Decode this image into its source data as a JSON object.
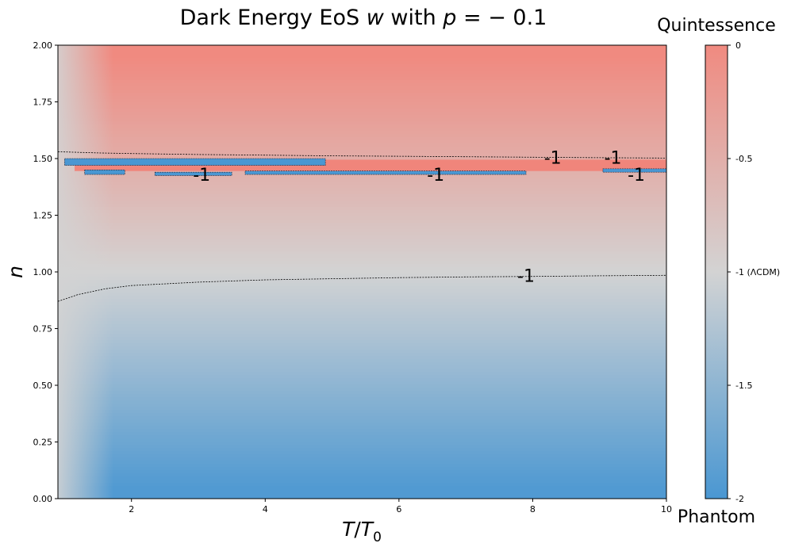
{
  "chart_data": {
    "type": "heatmap",
    "title": "Dark Energy EoS w with p = −0.1",
    "title_parts": {
      "prefix": "Dark Energy EoS ",
      "w": "w",
      "with": " with ",
      "p": "p",
      "eq": " = − 0.1"
    },
    "xlabel": "T/T₀",
    "xlabel_parts": {
      "T": "T",
      "slash": "/",
      "T2": "T",
      "sub": "0"
    },
    "ylabel": "n",
    "xlim": [
      0.9,
      10
    ],
    "ylim": [
      0,
      2
    ],
    "x_ticks": [
      "2",
      "4",
      "6",
      "8",
      "10"
    ],
    "y_ticks": [
      "0.00",
      "0.25",
      "0.50",
      "0.75",
      "1.00",
      "1.25",
      "1.50",
      "1.75",
      "2.00"
    ],
    "colorbar": {
      "top_label": "Quintessence",
      "bottom_label": "Phantom",
      "range": [
        -2,
        0
      ],
      "ticks": [
        {
          "value": 0,
          "label": "0"
        },
        {
          "value": -0.5,
          "label": "-0.5"
        },
        {
          "value": -1,
          "label": "-1 (ΛCDM)"
        },
        {
          "value": -1.5,
          "label": "-1.5"
        },
        {
          "value": -2,
          "label": "-2"
        }
      ],
      "colors": {
        "quintessence": "#f08a80",
        "lcdm": "#d3d3d3",
        "phantom": "#4a97d2"
      }
    },
    "contour_level": -1,
    "contour_labels": [
      {
        "x": 3.05,
        "y": 1.43,
        "label": "-1"
      },
      {
        "x": 6.55,
        "y": 1.43,
        "label": "-1"
      },
      {
        "x": 8.3,
        "y": 1.505,
        "label": "-1"
      },
      {
        "x": 9.2,
        "y": 1.505,
        "label": "-1"
      },
      {
        "x": 9.55,
        "y": 1.43,
        "label": "-1"
      },
      {
        "x": 7.9,
        "y": 0.985,
        "label": "-1"
      }
    ],
    "contour_lines": [
      {
        "name": "upper",
        "points": [
          [
            0.9,
            1.53
          ],
          [
            1.5,
            1.525
          ],
          [
            2,
            1.522
          ],
          [
            3,
            1.518
          ],
          [
            4,
            1.515
          ],
          [
            5,
            1.512
          ],
          [
            6,
            1.51
          ],
          [
            7,
            1.508
          ],
          [
            8,
            1.506
          ],
          [
            9,
            1.504
          ],
          [
            10,
            1.502
          ]
        ]
      },
      {
        "name": "lower",
        "points": [
          [
            0.9,
            0.87
          ],
          [
            1.2,
            0.9
          ],
          [
            1.6,
            0.925
          ],
          [
            2,
            0.94
          ],
          [
            3,
            0.955
          ],
          [
            4,
            0.965
          ],
          [
            5,
            0.97
          ],
          [
            6,
            0.975
          ],
          [
            7,
            0.978
          ],
          [
            8,
            0.98
          ],
          [
            9,
            0.983
          ],
          [
            10,
            0.985
          ]
        ]
      }
    ],
    "phantom_strips": [
      {
        "x0": 1.0,
        "x1": 4.9,
        "y0": 1.47,
        "y1": 1.5
      },
      {
        "x0": 1.3,
        "x1": 1.9,
        "y0": 1.43,
        "y1": 1.45
      },
      {
        "x0": 2.35,
        "x1": 3.5,
        "y0": 1.425,
        "y1": 1.44
      },
      {
        "x0": 3.7,
        "x1": 7.9,
        "y0": 1.43,
        "y1": 1.445
      },
      {
        "x0": 9.05,
        "x1": 10,
        "y0": 1.44,
        "y1": 1.455
      }
    ],
    "quintessence_band": {
      "y0": 1.445,
      "y1": 1.495
    }
  }
}
